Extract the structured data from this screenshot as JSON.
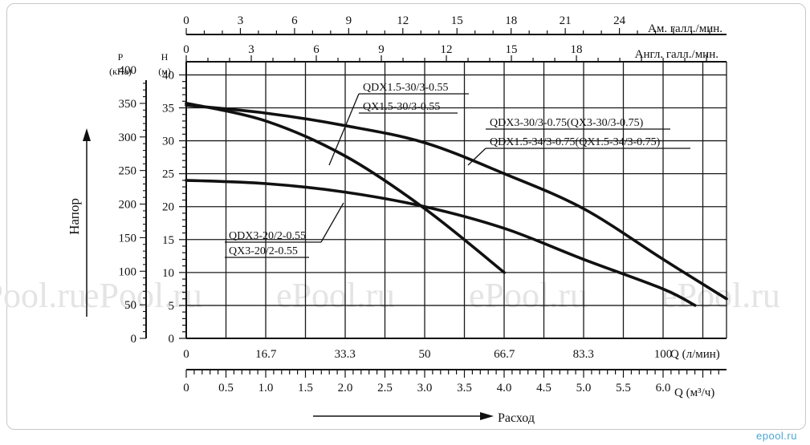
{
  "chart_data": {
    "type": "line",
    "x_label": "Q (л/мин)",
    "x_ticks": [
      "0",
      "16.7",
      "33.3",
      "50",
      "66.7",
      "83.3",
      "100"
    ],
    "x_range_lpm": [
      0,
      113.3
    ],
    "x2_label": "Q (м³/ч)",
    "x2_ticks": [
      "0",
      "0.5",
      "1.0",
      "1.5",
      "2.0",
      "2.5",
      "3.0",
      "3.5",
      "4.0",
      "4.5",
      "5.0",
      "5.5",
      "6.0"
    ],
    "top1_label": "Ам. галл./мин.",
    "top1_ticks": [
      "0",
      "3",
      "6",
      "9",
      "12",
      "15",
      "18",
      "21",
      "24"
    ],
    "top2_label": "Англ. галл./мин.",
    "top2_ticks": [
      "0",
      "3",
      "6",
      "9",
      "12",
      "15",
      "18"
    ],
    "yH_unit_top": "H",
    "yH_unit_bottom": "(м)",
    "yH_ticks": [
      "0",
      "5",
      "10",
      "15",
      "20",
      "25",
      "30",
      "35",
      "40"
    ],
    "yH_range_m": [
      0,
      42
    ],
    "yP_unit_top": "P",
    "yP_unit_bottom": "(кПа)",
    "yP_ticks": [
      "0",
      "50",
      "100",
      "150",
      "200",
      "250",
      "300",
      "350",
      "400"
    ],
    "y_arrow_label": "Напор",
    "x_arrow_label": "Расход",
    "grid": true,
    "series": [
      {
        "name": "QDX1.5-30/3-0.55 / QX1.5-30/3-0.55",
        "labels": [
          "QDX1.5-30/3-0.55",
          "QX1.5-30/3-0.55"
        ],
        "points": [
          [
            0,
            35.7
          ],
          [
            16.7,
            33
          ],
          [
            33.3,
            27.7
          ],
          [
            50,
            19.7
          ],
          [
            66.7,
            10
          ]
        ]
      },
      {
        "name": "QDX3-30/3-0.75(QX3-30/3-0.75) / QDX1.5-34/3-0.75(QX1.5-34/3-0.75)",
        "labels": [
          "QDX3-30/3-0.75(QX3-30/3-0.75)",
          "QDX1.5-34/3-0.75(QX1.5-34/3-0.75)"
        ],
        "points": [
          [
            0,
            35.4
          ],
          [
            16.7,
            34.2
          ],
          [
            33.3,
            32.3
          ],
          [
            50,
            29.7
          ],
          [
            66.7,
            25
          ],
          [
            83.3,
            19.7
          ],
          [
            100,
            12
          ],
          [
            113.3,
            6
          ]
        ]
      },
      {
        "name": "QDX3-20/2-0.55 / QX3-20/2-0.55",
        "labels": [
          "QDX3-20/2-0.55",
          "QX3-20/2-0.55"
        ],
        "points": [
          [
            0,
            24
          ],
          [
            16.7,
            23.5
          ],
          [
            33.3,
            22.2
          ],
          [
            50,
            20
          ],
          [
            66.7,
            16.7
          ],
          [
            83.3,
            12
          ],
          [
            100,
            7.5
          ],
          [
            106.7,
            5
          ]
        ]
      }
    ]
  },
  "watermark": "ePool.ru",
  "logo": "epool.ru"
}
